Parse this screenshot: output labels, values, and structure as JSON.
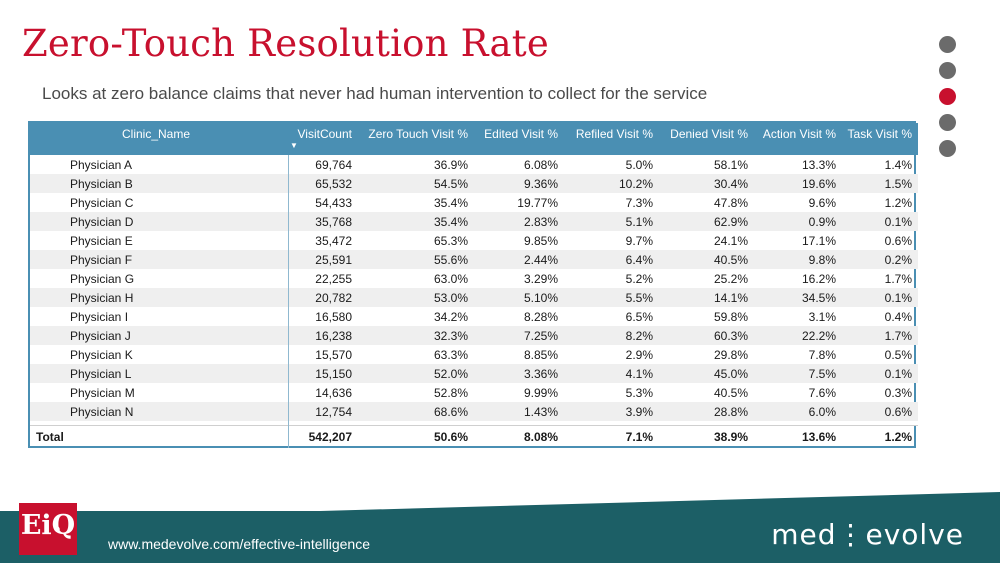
{
  "title": "Zero-Touch Resolution Rate",
  "subtitle": "Looks at zero balance claims that never had human intervention to collect for the service",
  "table": {
    "columns": [
      "Clinic_Name",
      "VisitCount",
      "Zero Touch Visit %",
      "Edited Visit %",
      "Refiled Visit %",
      "Denied Visit %",
      "Action Visit %",
      "Task Visit %"
    ],
    "rows": [
      [
        "Physician A",
        "69,764",
        "36.9%",
        "6.08%",
        "5.0%",
        "58.1%",
        "13.3%",
        "1.4%"
      ],
      [
        "Physician B",
        "65,532",
        "54.5%",
        "9.36%",
        "10.2%",
        "30.4%",
        "19.6%",
        "1.5%"
      ],
      [
        "Physician C",
        "54,433",
        "35.4%",
        "19.77%",
        "7.3%",
        "47.8%",
        "9.6%",
        "1.2%"
      ],
      [
        "Physician D",
        "35,768",
        "35.4%",
        "2.83%",
        "5.1%",
        "62.9%",
        "0.9%",
        "0.1%"
      ],
      [
        "Physician E",
        "35,472",
        "65.3%",
        "9.85%",
        "9.7%",
        "24.1%",
        "17.1%",
        "0.6%"
      ],
      [
        "Physician F",
        "25,591",
        "55.6%",
        "2.44%",
        "6.4%",
        "40.5%",
        "9.8%",
        "0.2%"
      ],
      [
        "Physician G",
        "22,255",
        "63.0%",
        "3.29%",
        "5.2%",
        "25.2%",
        "16.2%",
        "1.7%"
      ],
      [
        "Physician H",
        "20,782",
        "53.0%",
        "5.10%",
        "5.5%",
        "14.1%",
        "34.5%",
        "0.1%"
      ],
      [
        "Physician I",
        "16,580",
        "34.2%",
        "8.28%",
        "6.5%",
        "59.8%",
        "3.1%",
        "0.4%"
      ],
      [
        "Physician J",
        "16,238",
        "32.3%",
        "7.25%",
        "8.2%",
        "60.3%",
        "22.2%",
        "1.7%"
      ],
      [
        "Physician K",
        "15,570",
        "63.3%",
        "8.85%",
        "2.9%",
        "29.8%",
        "7.8%",
        "0.5%"
      ],
      [
        "Physician L",
        "15,150",
        "52.0%",
        "3.36%",
        "4.1%",
        "45.0%",
        "7.5%",
        "0.1%"
      ],
      [
        "Physician M",
        "14,636",
        "52.8%",
        "9.99%",
        "5.3%",
        "40.5%",
        "7.6%",
        "0.3%"
      ],
      [
        "Physician N",
        "12,754",
        "68.6%",
        "1.43%",
        "3.9%",
        "28.8%",
        "6.0%",
        "0.6%"
      ]
    ],
    "total": [
      "Total",
      "542,207",
      "50.6%",
      "8.08%",
      "7.1%",
      "38.9%",
      "13.6%",
      "1.2%"
    ]
  },
  "sort_icon": "sort-descending-icon",
  "nav_dots": [
    {
      "active": false
    },
    {
      "active": false
    },
    {
      "active": true
    },
    {
      "active": false
    },
    {
      "active": false
    }
  ],
  "footer": {
    "logo_text": "EiQ",
    "url": "www.medevolve.com/effective-intelligence",
    "brand": "med⋮evolve"
  },
  "colors": {
    "accent_red": "#c8102e",
    "header_blue": "#4a8fb3",
    "footer_teal": "#1c5f66"
  }
}
